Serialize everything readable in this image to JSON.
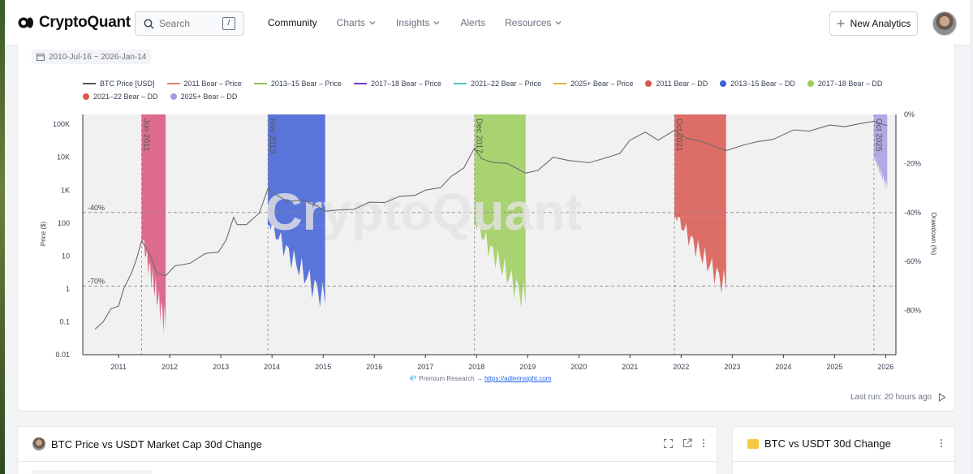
{
  "header": {
    "logo_text": "CryptoQuant",
    "search_placeholder": "Search",
    "search_shortcut": "/",
    "nav": [
      {
        "label": "Community",
        "active": true,
        "dropdown": false
      },
      {
        "label": "Charts",
        "active": false,
        "dropdown": true
      },
      {
        "label": "Insights",
        "active": false,
        "dropdown": true
      },
      {
        "label": "Alerts",
        "active": false,
        "dropdown": false
      },
      {
        "label": "Resources",
        "active": false,
        "dropdown": true
      }
    ],
    "new_analytics_label": "New Analytics"
  },
  "chart_card": {
    "date_range": "2010-Jul-16 ~ 2026-Jan-14",
    "watermark": "CryptoQuant",
    "source_note": "💎 Premium Research → ",
    "source_link": "https://adlerinsight.com",
    "last_run": "Last run: 20 hours ago"
  },
  "colors": {
    "btc": "#6b6b6b",
    "bear2011": "#d9547a",
    "bear2013": "#3f5fd6",
    "bear2017": "#9ccc5a",
    "bear2021": "#d9574f",
    "bear2025": "#a89be0"
  },
  "chart_data": {
    "type": "line",
    "legend": [
      {
        "label": "BTC Price [USD]",
        "kind": "line",
        "color": "#555555"
      },
      {
        "label": "2011 Bear – Price",
        "kind": "line",
        "color": "#e0845e"
      },
      {
        "label": "2013–15 Bear – Price",
        "kind": "line",
        "color": "#8dc454"
      },
      {
        "label": "2017–18 Bear – Price",
        "kind": "line",
        "color": "#6a3fc4"
      },
      {
        "label": "2021–22 Bear – Price",
        "kind": "line",
        "color": "#4fc3b5"
      },
      {
        "label": "2025+ Bear – Price",
        "kind": "line",
        "color": "#d8b44a"
      },
      {
        "label": "2011 Bear – DD",
        "kind": "dot",
        "color": "#d9574f"
      },
      {
        "label": "2013–15 Bear – DD",
        "kind": "dot",
        "color": "#3f5fd6"
      },
      {
        "label": "2017–18 Bear – DD",
        "kind": "dot",
        "color": "#9ccc5a"
      },
      {
        "label": "2021–22 Bear – DD",
        "kind": "dot",
        "color": "#d9574f"
      },
      {
        "label": "2025+ Bear – DD",
        "kind": "dot",
        "color": "#a89be0"
      }
    ],
    "x_ticks": [
      "2011",
      "2012",
      "2013",
      "2014",
      "2015",
      "2016",
      "2017",
      "2018",
      "2019",
      "2020",
      "2021",
      "2022",
      "2023",
      "2024",
      "2025",
      "2026"
    ],
    "y_left": {
      "label": "Price ($)",
      "scale": "log",
      "ticks": [
        "100K",
        "10K",
        "1K",
        "100",
        "10",
        "1",
        "0.1",
        "0.01"
      ],
      "range": [
        0.01,
        200000
      ]
    },
    "y_right": {
      "label": "Drawdown (%)",
      "ticks": [
        "0%",
        "-20%",
        "-40%",
        "-60%",
        "-80%"
      ],
      "range": [
        -98,
        0
      ]
    },
    "reference_lines": [
      {
        "label": "-40%",
        "value": -40
      },
      {
        "label": "-70%",
        "value": -70
      }
    ],
    "events": [
      {
        "label": "Jun 2011",
        "start": 2011.45,
        "end": 2011.92,
        "color": "#d9547a",
        "min_dd": -93
      },
      {
        "label": "Nov 2013",
        "start": 2013.92,
        "end": 2015.04,
        "color": "#3f5fd6",
        "min_dd": -82
      },
      {
        "label": "Dec 2017",
        "start": 2017.96,
        "end": 2018.96,
        "color": "#9ccc5a",
        "min_dd": -82
      },
      {
        "label": "Oct 2021",
        "start": 2021.87,
        "end": 2022.88,
        "color": "#d9574f",
        "min_dd": -76
      },
      {
        "label": "Oct 2025",
        "start": 2025.77,
        "end": 2026.03,
        "color": "#a89be0",
        "min_dd": -32
      }
    ],
    "btc_price": {
      "x": [
        2010.54,
        2010.7,
        2010.85,
        2011.0,
        2011.1,
        2011.25,
        2011.35,
        2011.45,
        2011.6,
        2011.75,
        2011.92,
        2012.1,
        2012.4,
        2012.7,
        2012.95,
        2013.1,
        2013.25,
        2013.32,
        2013.5,
        2013.75,
        2013.92,
        2014.1,
        2014.3,
        2014.6,
        2014.9,
        2015.04,
        2015.3,
        2015.6,
        2015.9,
        2016.2,
        2016.5,
        2016.8,
        2017.0,
        2017.3,
        2017.5,
        2017.75,
        2017.96,
        2018.1,
        2018.3,
        2018.6,
        2018.96,
        2019.2,
        2019.5,
        2019.8,
        2020.2,
        2020.5,
        2020.8,
        2021.0,
        2021.3,
        2021.55,
        2021.87,
        2022.1,
        2022.4,
        2022.7,
        2022.88,
        2023.2,
        2023.5,
        2023.8,
        2024.2,
        2024.5,
        2024.9,
        2025.2,
        2025.5,
        2025.77,
        2025.9,
        2026.03
      ],
      "y": [
        0.06,
        0.1,
        0.25,
        0.3,
        1,
        3,
        8,
        29,
        12,
        3,
        2.5,
        5,
        6,
        12,
        13,
        30,
        150,
        90,
        90,
        200,
        1100,
        700,
        450,
        500,
        320,
        230,
        250,
        260,
        430,
        420,
        650,
        700,
        1000,
        1200,
        2600,
        4700,
        19000,
        9000,
        7000,
        6500,
        3300,
        4000,
        10000,
        8000,
        6800,
        9300,
        13000,
        33000,
        58000,
        33000,
        66000,
        38000,
        30000,
        20000,
        16000,
        23000,
        30000,
        35000,
        68000,
        62000,
        95000,
        85000,
        105000,
        124000,
        104000,
        92000
      ]
    }
  },
  "cards": [
    {
      "title": "BTC Price vs USDT Market Cap 30d Change"
    },
    {
      "title": "BTC vs USDT 30d Change"
    }
  ]
}
